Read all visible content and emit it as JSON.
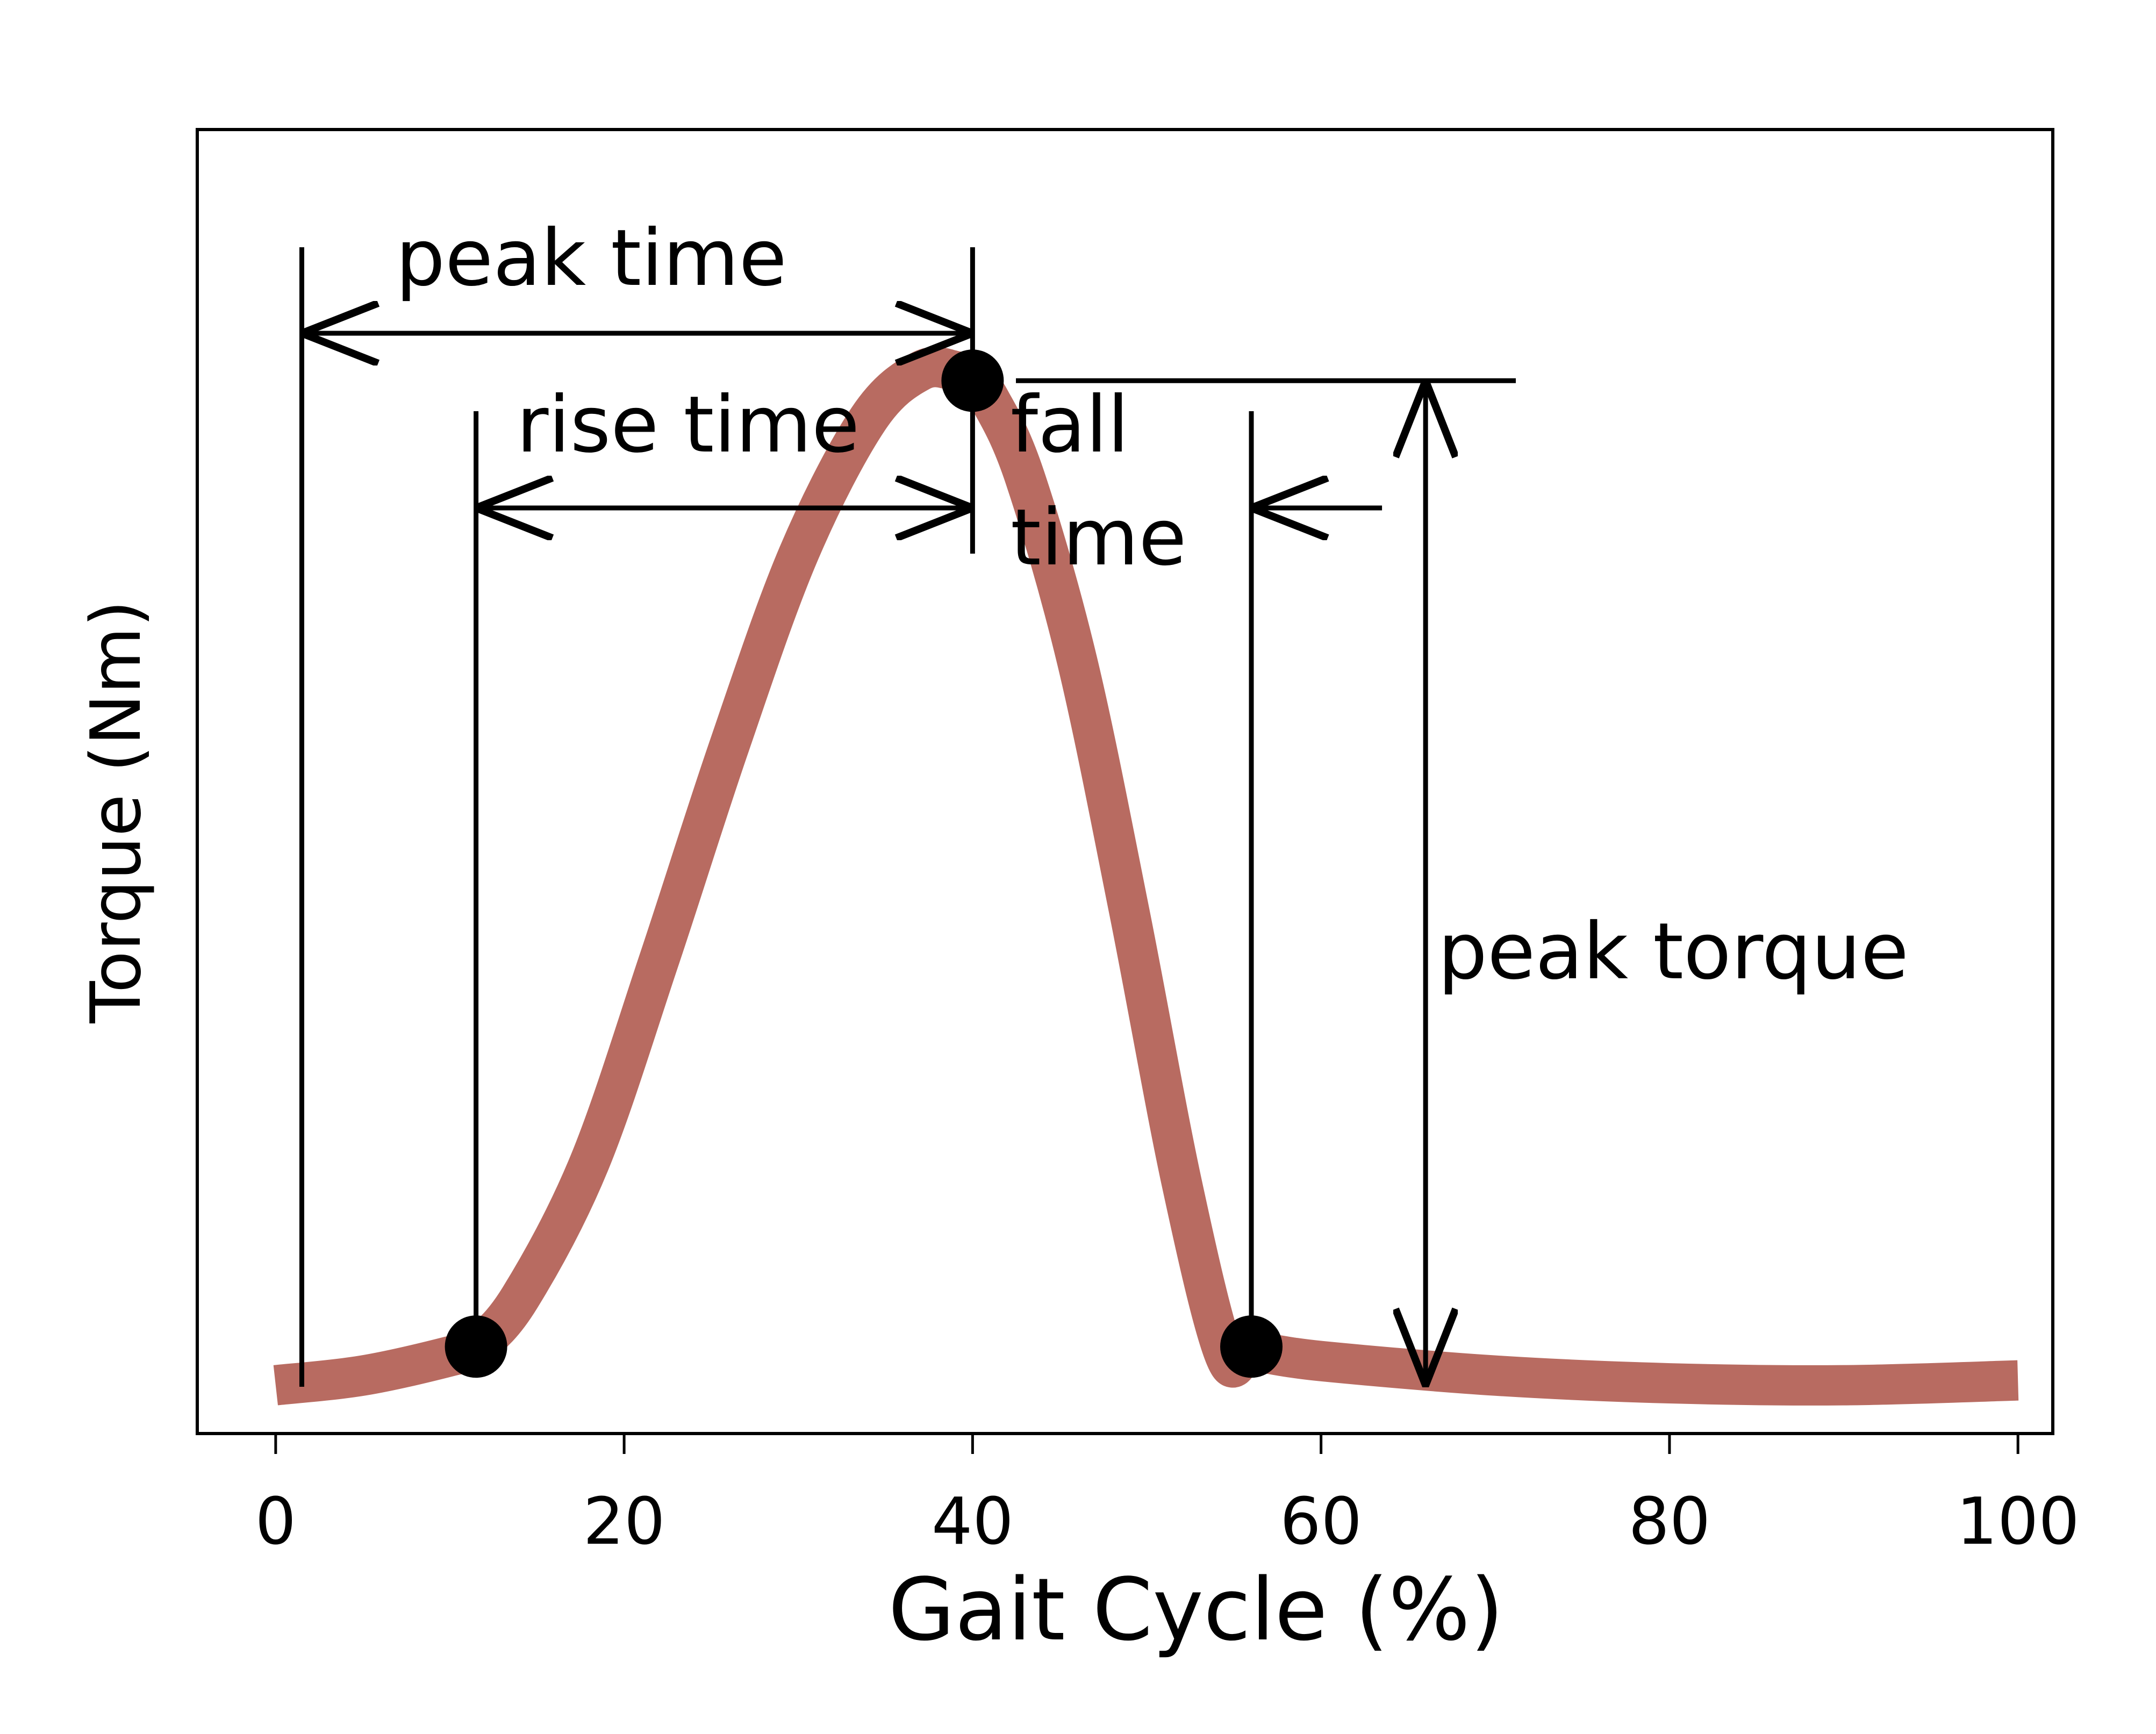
{
  "chart_data": {
    "type": "line",
    "xlabel": "Gait Cycle (%)",
    "ylabel": "Torque (Nm)",
    "xlim": [
      -4.5,
      102
    ],
    "ylim": [
      -0.05,
      1.3
    ],
    "x_ticks": [
      0,
      20,
      40,
      60,
      80,
      100
    ],
    "x_tick_labels": [
      "0",
      "20",
      "40",
      "60",
      "80",
      "100"
    ],
    "y_ticks_shown": false,
    "grid": false,
    "series": [
      {
        "color": "#b86b61",
        "x": [
          0,
          5,
          10,
          11.5,
          14,
          18,
          22,
          26,
          30,
          34,
          37,
          39,
          40,
          41,
          43,
          46,
          49,
          52,
          54.5,
          56,
          60,
          70,
          80,
          90,
          100
        ],
        "y": [
          0.0,
          0.01,
          0.03,
          0.04,
          0.09,
          0.23,
          0.44,
          0.66,
          0.86,
          1.0,
          1.05,
          1.05,
          1.04,
          1.02,
          0.94,
          0.75,
          0.49,
          0.21,
          0.03,
          0.035,
          0.025,
          0.01,
          0.002,
          0.0,
          0.005
        ]
      }
    ],
    "markers": [
      {
        "x": 11.5,
        "y": 0.04
      },
      {
        "x": 40,
        "y": 1.04
      },
      {
        "x": 56,
        "y": 0.04
      }
    ],
    "annotations": {
      "peak_time": {
        "label": "peak time",
        "x_start": 1.5,
        "x_end": 40
      },
      "rise_time": {
        "label": "rise time",
        "x_start": 11.5,
        "x_end": 40
      },
      "fall_time": {
        "line1": "fall",
        "line2": "time",
        "x": 56,
        "arrow_from_x": 63.5
      },
      "peak_torque": {
        "label": "peak torque",
        "x": 66,
        "y_top": 1.04,
        "y_bottom": 0.0
      }
    }
  }
}
